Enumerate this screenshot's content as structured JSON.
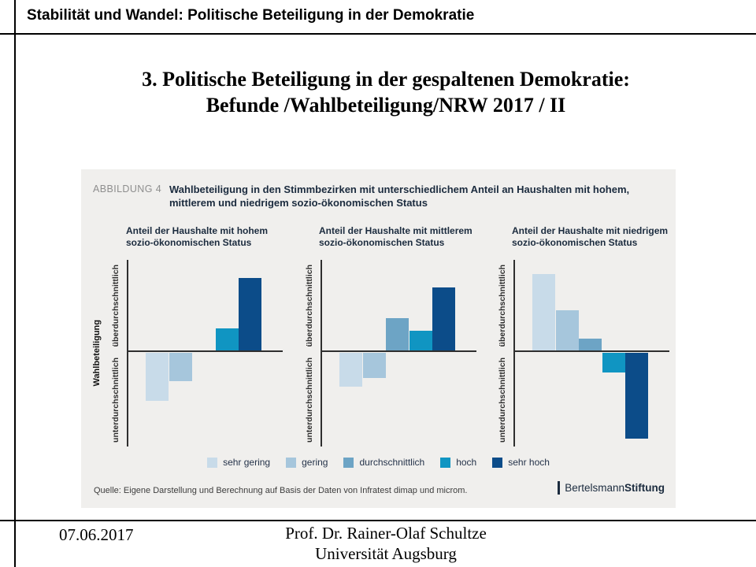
{
  "header": {
    "title": "Stabilität und Wandel: Politische Beteiligung in der Demokratie"
  },
  "slide_title": {
    "line1": "3. Politische Beteiligung in der gespaltenen Demokratie:",
    "line2": "Befunde /Wahlbeteiligung/NRW 2017 / II"
  },
  "figure": {
    "label": "ABBILDUNG 4",
    "caption_line1": "Wahlbeteiligung in den Stimmbezirken mit unterschiedlichem Anteil an Haushalten mit hohem,",
    "caption_line2": "mittlerem und niedrigem sozio-ökonomischen Status",
    "y_axis_label": "Wahlbeteiligung",
    "y_tick_top": "überdurchschnittlich",
    "y_tick_bottom": "unterdurchschnittlich",
    "source": "Quelle: Eigene Darstellung und Berechnung auf Basis der Daten von Infratest dimap und microm.",
    "logo": {
      "part1": "Bertelsmann",
      "part2": "Stiftung"
    }
  },
  "chart_data": {
    "type": "bar",
    "categories": [
      "sehr gering",
      "gering",
      "durchschnittlich",
      "hoch",
      "sehr hoch"
    ],
    "colors": [
      "#c8dbe9",
      "#a6c6dc",
      "#6da4c5",
      "#1095c2",
      "#0c4c89"
    ],
    "ylabel": "Wahlbeteiligung",
    "y_axis_qualitative": [
      "überdurchschnittlich",
      "unterdurchschnittlich"
    ],
    "value_note": "qualitative axis; values are relative bar heights (px) above/below the average line",
    "legend": [
      "sehr gering",
      "gering",
      "durchschnittlich",
      "hoch",
      "sehr hoch"
    ],
    "legend_position": "bottom-center",
    "grid": false,
    "panels": [
      {
        "title_line1": "Anteil der Haushalte mit hohem",
        "title_line2": "sozio-ökonomischen Status",
        "values": [
          -61,
          -36,
          0,
          29,
          93
        ]
      },
      {
        "title_line1": "Anteil der Haushalte mit mittlerem",
        "title_line2": "sozio-ökonomischen Status",
        "values": [
          -43,
          -32,
          42,
          26,
          81
        ]
      },
      {
        "title_line1": "Anteil der Haushalte mit niedrigem",
        "title_line2": "sozio-ökonomischen Status",
        "values": [
          98,
          52,
          16,
          -25,
          -109
        ]
      }
    ]
  },
  "footer": {
    "date": "07.06.2017",
    "author": "Prof. Dr. Rainer-Olaf Schultze",
    "affiliation": "Universität Augsburg"
  }
}
